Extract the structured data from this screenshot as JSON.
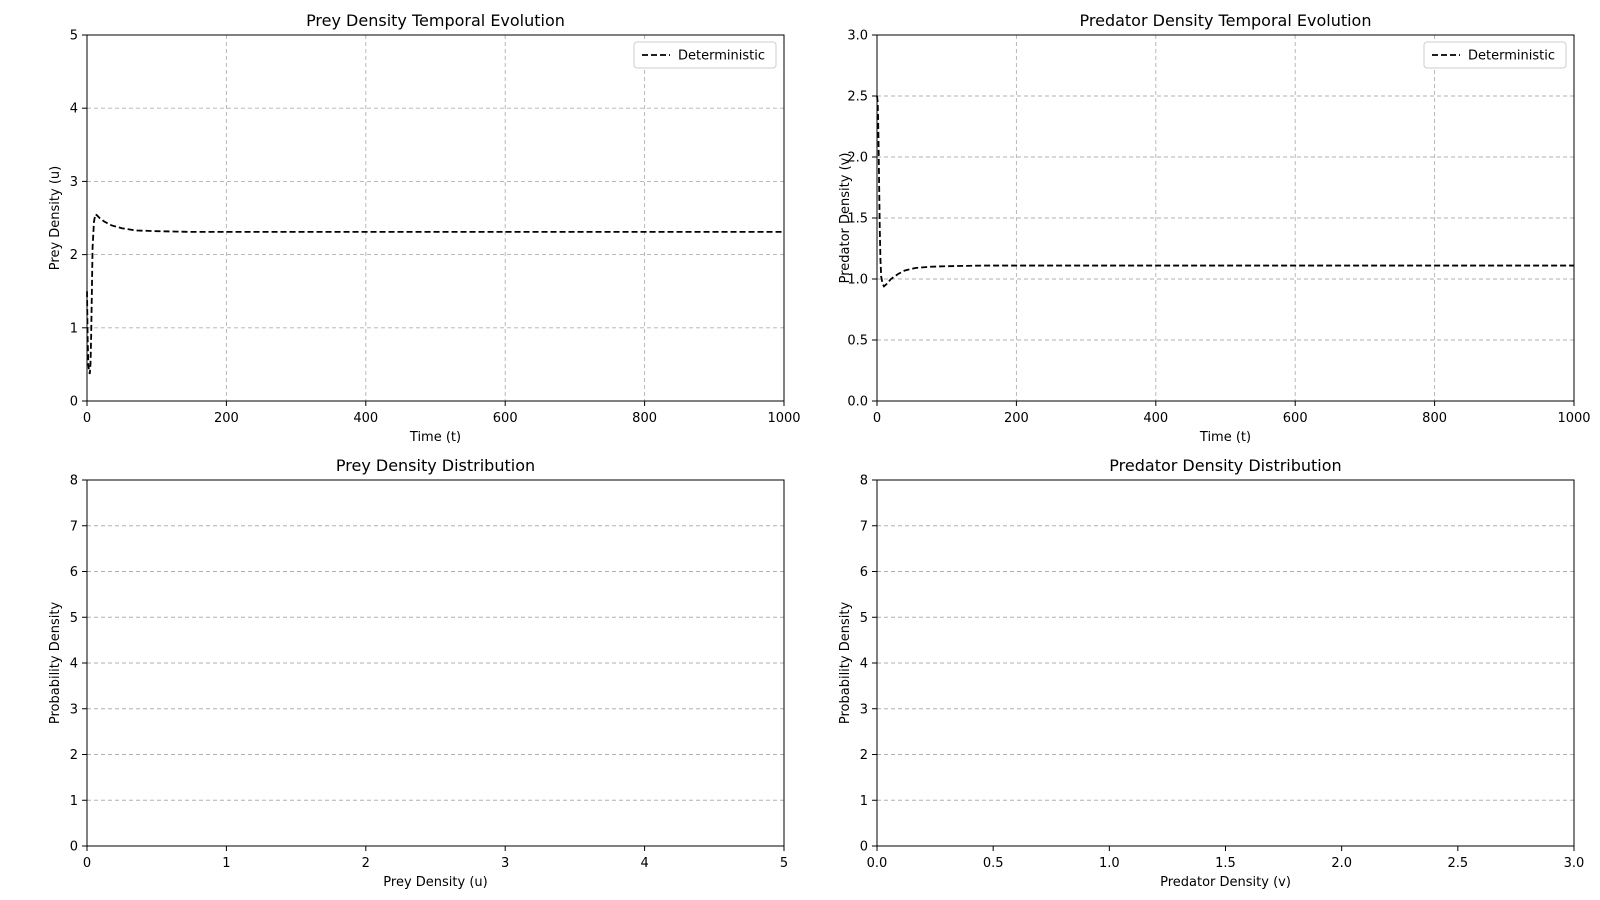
{
  "chart_data": [
    {
      "type": "line",
      "title": "Prey Density Temporal Evolution",
      "xlabel": "Time (t)",
      "ylabel": "Prey Density (u)",
      "xlim": [
        0,
        1000
      ],
      "ylim": [
        0,
        5
      ],
      "xticks": [
        0,
        200,
        400,
        600,
        800,
        1000
      ],
      "yticks": [
        0,
        1,
        2,
        3,
        4,
        5
      ],
      "xtick_labels": [
        "0",
        "200",
        "400",
        "600",
        "800",
        "1000"
      ],
      "ytick_labels": [
        "0",
        "1",
        "2",
        "3",
        "4",
        "5"
      ],
      "grid": true,
      "legend": {
        "position": "top-right",
        "entries": [
          "Deterministic"
        ]
      },
      "series": [
        {
          "name": "Deterministic",
          "style": "dashed",
          "color": "#000000",
          "x": [
            0,
            1,
            2,
            3,
            4,
            5,
            6,
            7,
            8,
            10,
            12,
            14,
            18,
            25,
            35,
            50,
            70,
            100,
            150,
            200,
            300,
            400,
            600,
            800,
            1000
          ],
          "y": [
            1.5,
            0.8,
            0.5,
            0.4,
            0.37,
            0.5,
            0.9,
            1.5,
            2.1,
            2.45,
            2.55,
            2.54,
            2.5,
            2.45,
            2.4,
            2.36,
            2.33,
            2.32,
            2.31,
            2.31,
            2.31,
            2.31,
            2.31,
            2.31,
            2.31
          ]
        }
      ]
    },
    {
      "type": "line",
      "title": "Predator Density Temporal Evolution",
      "xlabel": "Time (t)",
      "ylabel": "Predator Density (v)",
      "xlim": [
        0,
        1000
      ],
      "ylim": [
        0,
        3
      ],
      "xticks": [
        0,
        200,
        400,
        600,
        800,
        1000
      ],
      "yticks": [
        0,
        0.5,
        1.0,
        1.5,
        2.0,
        2.5,
        3.0
      ],
      "xtick_labels": [
        "0",
        "200",
        "400",
        "600",
        "800",
        "1000"
      ],
      "ytick_labels": [
        "0.0",
        "0.5",
        "1.0",
        "1.5",
        "2.0",
        "2.5",
        "3.0"
      ],
      "grid": true,
      "legend": {
        "position": "top-right",
        "entries": [
          "Deterministic"
        ]
      },
      "series": [
        {
          "name": "Deterministic",
          "style": "dashed",
          "color": "#000000",
          "x": [
            0,
            1,
            2,
            3,
            4,
            5,
            6,
            8,
            10,
            14,
            20,
            30,
            40,
            55,
            75,
            100,
            150,
            200,
            300,
            400,
            600,
            800,
            1000
          ],
          "y": [
            2.5,
            2.45,
            2.2,
            1.8,
            1.4,
            1.15,
            1.02,
            0.96,
            0.94,
            0.96,
            1.0,
            1.04,
            1.07,
            1.09,
            1.1,
            1.105,
            1.11,
            1.11,
            1.11,
            1.11,
            1.11,
            1.11,
            1.11
          ]
        }
      ]
    },
    {
      "type": "line",
      "title": "Prey Density Distribution",
      "xlabel": "Prey Density (u)",
      "ylabel": "Probability Density",
      "xlim": [
        0,
        5
      ],
      "ylim": [
        0,
        8
      ],
      "xticks": [
        0,
        1,
        2,
        3,
        4,
        5
      ],
      "yticks": [
        0,
        1,
        2,
        3,
        4,
        5,
        6,
        7,
        8
      ],
      "xtick_labels": [
        "0",
        "1",
        "2",
        "3",
        "4",
        "5"
      ],
      "ytick_labels": [
        "0",
        "1",
        "2",
        "3",
        "4",
        "5",
        "6",
        "7",
        "8"
      ],
      "grid": "y-only",
      "series": []
    },
    {
      "type": "line",
      "title": "Predator Density Distribution",
      "xlabel": "Predator Density (v)",
      "ylabel": "Probability Density",
      "xlim": [
        0,
        3
      ],
      "ylim": [
        0,
        8
      ],
      "xticks": [
        0,
        0.5,
        1.0,
        1.5,
        2.0,
        2.5,
        3.0
      ],
      "yticks": [
        0,
        1,
        2,
        3,
        4,
        5,
        6,
        7,
        8
      ],
      "xtick_labels": [
        "0.0",
        "0.5",
        "1.0",
        "1.5",
        "2.0",
        "2.5",
        "3.0"
      ],
      "ytick_labels": [
        "0",
        "1",
        "2",
        "3",
        "4",
        "5",
        "6",
        "7",
        "8"
      ],
      "grid": "y-only",
      "series": []
    }
  ]
}
